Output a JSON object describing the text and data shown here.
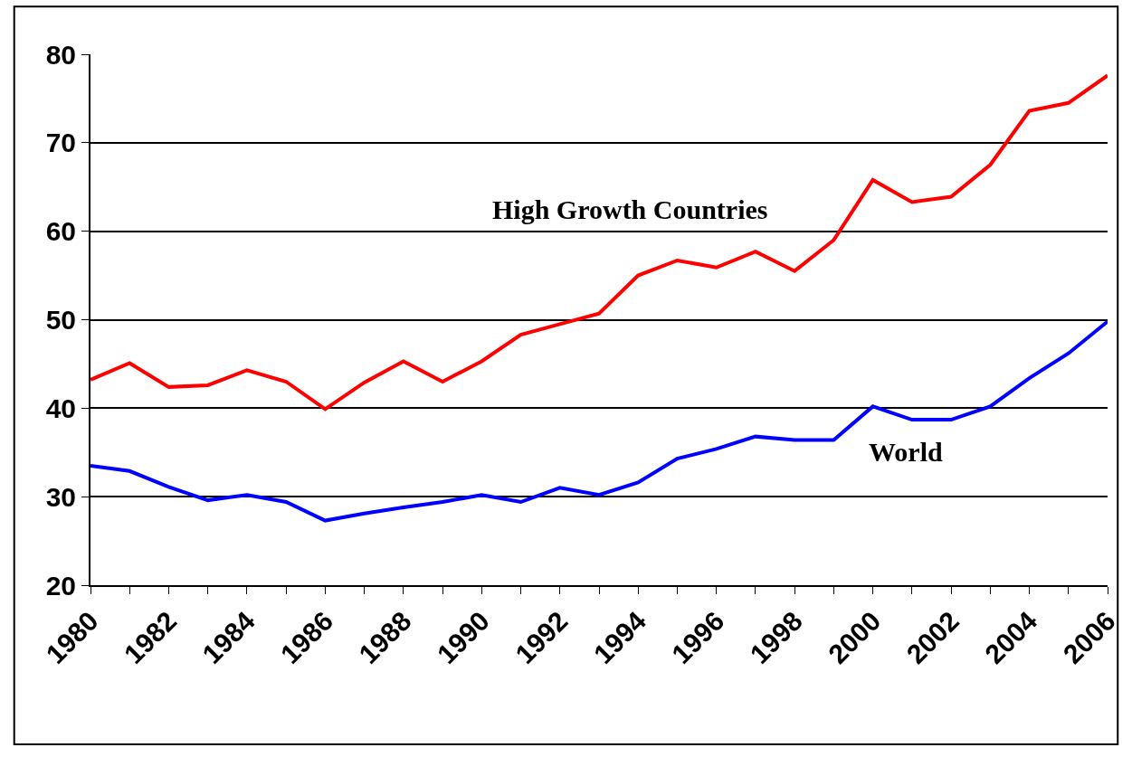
{
  "chart_data": {
    "type": "line",
    "x": [
      1980,
      1981,
      1982,
      1983,
      1984,
      1985,
      1986,
      1987,
      1988,
      1989,
      1990,
      1991,
      1992,
      1993,
      1994,
      1995,
      1996,
      1997,
      1998,
      1999,
      2000,
      2001,
      2002,
      2003,
      2004,
      2005,
      2006
    ],
    "series": [
      {
        "color": "#ff0000",
        "values": [
          43.2,
          45.1,
          42.4,
          42.6,
          44.3,
          43.0,
          39.9,
          42.9,
          45.3,
          43.0,
          45.3,
          48.3,
          49.5,
          50.7,
          55.0,
          56.7,
          55.9,
          57.7,
          55.5,
          59.0,
          65.8,
          63.3,
          63.9,
          67.5,
          73.6,
          74.5,
          77.6
        ]
      },
      {
        "color": "#0000ff",
        "values": [
          33.5,
          32.9,
          31.1,
          29.6,
          30.2,
          29.4,
          27.3,
          28.1,
          28.8,
          29.4,
          30.2,
          29.4,
          31.0,
          30.2,
          31.6,
          34.3,
          35.4,
          36.8,
          36.4,
          36.4,
          40.2,
          38.7,
          38.7,
          40.2,
          43.4,
          46.2,
          49.8
        ]
      }
    ],
    "annotations": [
      "High Growth Countries",
      "World"
    ],
    "xlim": [
      1980,
      2006
    ],
    "xticks": [
      1980,
      {
        "value": 1981,
        "label": null
      },
      1982,
      {
        "value": 1983,
        "label": null
      },
      1984,
      {
        "value": 1985,
        "label": null
      },
      1986,
      {
        "value": 1987,
        "label": null
      },
      1988,
      {
        "value": 1989,
        "label": null
      },
      1990,
      {
        "value": 1991,
        "label": null
      },
      1992,
      {
        "value": 1993,
        "label": null
      },
      1994,
      {
        "value": 1995,
        "label": null
      },
      1996,
      {
        "value": 1997,
        "label": null
      },
      1998,
      {
        "value": 1999,
        "label": null
      },
      2000,
      {
        "value": 2001,
        "label": null
      },
      2002,
      {
        "value": 2003,
        "label": null
      },
      2004,
      {
        "value": 2005,
        "label": null
      },
      2006
    ],
    "ylim": [
      20,
      80
    ],
    "yticks": [
      20,
      30,
      40,
      50,
      60,
      70,
      80
    ],
    "grid": "y",
    "marker": "none",
    "line_style": "solid"
  }
}
